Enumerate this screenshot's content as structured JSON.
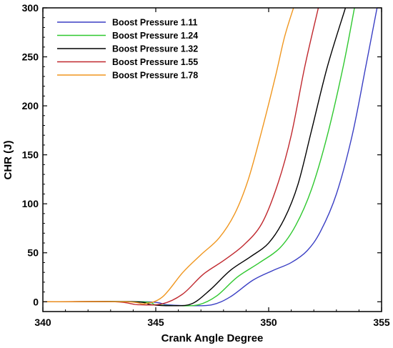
{
  "chart_data": {
    "type": "line",
    "xlabel": "Crank Angle Degree",
    "ylabel": "CHR  (J)",
    "xlim": [
      340,
      355
    ],
    "ylim": [
      -10,
      300
    ],
    "x_ticks": [
      340,
      345,
      350,
      355
    ],
    "x_tick_labels": [
      "340",
      "345",
      "350",
      "355"
    ],
    "y_ticks": [
      0,
      50,
      100,
      150,
      200,
      250,
      300
    ],
    "y_tick_labels": [
      "0",
      "50",
      "100",
      "150",
      "200",
      "250",
      "300"
    ],
    "grid": false,
    "legend_position": "top-left",
    "series": [
      {
        "name": "Boost Pressure 1.11",
        "color": "#3a3fc4",
        "points": [
          [
            340,
            0
          ],
          [
            344.5,
            0
          ],
          [
            345.5,
            -3
          ],
          [
            346.5,
            -4
          ],
          [
            347.5,
            -3
          ],
          [
            348.3,
            5
          ],
          [
            349.3,
            22
          ],
          [
            350.2,
            32
          ],
          [
            351,
            40
          ],
          [
            351.7,
            52
          ],
          [
            352.3,
            72
          ],
          [
            353,
            110
          ],
          [
            353.7,
            170
          ],
          [
            354.3,
            240
          ],
          [
            354.8,
            300
          ]
        ]
      },
      {
        "name": "Boost Pressure 1.24",
        "color": "#2fc82f",
        "points": [
          [
            340,
            0
          ],
          [
            344.3,
            0
          ],
          [
            345,
            -3
          ],
          [
            346,
            -4
          ],
          [
            346.9,
            -3
          ],
          [
            347.7,
            6
          ],
          [
            348.6,
            25
          ],
          [
            349.6,
            40
          ],
          [
            350.5,
            55
          ],
          [
            351.2,
            78
          ],
          [
            351.9,
            115
          ],
          [
            352.6,
            170
          ],
          [
            353.3,
            240
          ],
          [
            353.8,
            300
          ]
        ]
      },
      {
        "name": "Boost Pressure 1.32",
        "color": "#000000",
        "points": [
          [
            340,
            0
          ],
          [
            344,
            0
          ],
          [
            344.8,
            -3
          ],
          [
            345.8,
            -4
          ],
          [
            346.6,
            -2
          ],
          [
            347.4,
            12
          ],
          [
            348.3,
            32
          ],
          [
            349.2,
            46
          ],
          [
            350,
            60
          ],
          [
            350.7,
            85
          ],
          [
            351.3,
            120
          ],
          [
            351.9,
            175
          ],
          [
            352.6,
            240
          ],
          [
            353.4,
            300
          ]
        ]
      },
      {
        "name": "Boost Pressure 1.55",
        "color": "#c0282e",
        "points": [
          [
            340,
            0
          ],
          [
            343.2,
            0
          ],
          [
            344.2,
            -3
          ],
          [
            345.3,
            -2
          ],
          [
            346.2,
            8
          ],
          [
            347.1,
            28
          ],
          [
            348,
            42
          ],
          [
            348.9,
            58
          ],
          [
            349.7,
            80
          ],
          [
            350.4,
            120
          ],
          [
            351,
            170
          ],
          [
            351.6,
            240
          ],
          [
            352.2,
            300
          ]
        ]
      },
      {
        "name": "Boost Pressure 1.78",
        "color": "#f0961e",
        "points": [
          [
            340,
            0
          ],
          [
            343.7,
            0
          ],
          [
            344.5,
            -2
          ],
          [
            345.3,
            5
          ],
          [
            346.2,
            30
          ],
          [
            347,
            48
          ],
          [
            347.8,
            65
          ],
          [
            348.5,
            90
          ],
          [
            349.1,
            125
          ],
          [
            349.7,
            175
          ],
          [
            350.3,
            230
          ],
          [
            350.7,
            270
          ],
          [
            351.1,
            300
          ]
        ]
      }
    ]
  }
}
